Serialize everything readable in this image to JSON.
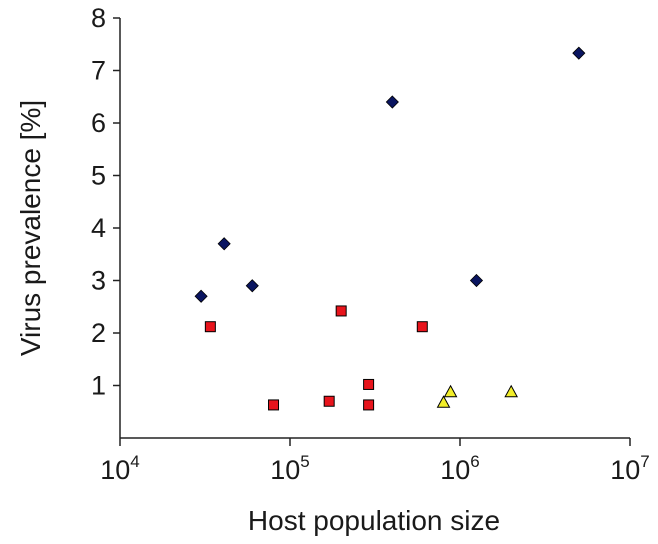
{
  "chart_data": {
    "type": "scatter",
    "xlabel": "Host population size",
    "ylabel": "Virus prevalence [%]",
    "x_scale": "log10",
    "xlim": [
      10000,
      10000000
    ],
    "ylim": [
      0,
      8
    ],
    "x_ticks": [
      {
        "value": 10000,
        "base": "10",
        "exp": "4"
      },
      {
        "value": 100000,
        "base": "10",
        "exp": "5"
      },
      {
        "value": 1000000,
        "base": "10",
        "exp": "6"
      },
      {
        "value": 10000000,
        "base": "10",
        "exp": "7"
      }
    ],
    "y_ticks": [
      "1",
      "2",
      "3",
      "4",
      "5",
      "6",
      "7",
      "8"
    ],
    "grid": false,
    "legend": "none",
    "series": [
      {
        "marker": "diamond",
        "color": "#0a1560",
        "points": [
          {
            "x": 30000,
            "y": 2.7
          },
          {
            "x": 41000,
            "y": 3.7
          },
          {
            "x": 60000,
            "y": 2.9
          },
          {
            "x": 400000,
            "y": 6.4
          },
          {
            "x": 1250000,
            "y": 3.0
          },
          {
            "x": 5000000,
            "y": 7.33
          }
        ]
      },
      {
        "marker": "square",
        "color": "#e8141c",
        "points": [
          {
            "x": 34000,
            "y": 2.12
          },
          {
            "x": 80000,
            "y": 0.63
          },
          {
            "x": 170000,
            "y": 0.7
          },
          {
            "x": 200000,
            "y": 2.42
          },
          {
            "x": 290000,
            "y": 1.02
          },
          {
            "x": 290000,
            "y": 0.63
          },
          {
            "x": 600000,
            "y": 2.12
          }
        ]
      },
      {
        "marker": "triangle",
        "color": "#f2ee2a",
        "points": [
          {
            "x": 800000,
            "y": 0.68
          },
          {
            "x": 880000,
            "y": 0.88
          },
          {
            "x": 2000000,
            "y": 0.88
          }
        ]
      }
    ]
  }
}
